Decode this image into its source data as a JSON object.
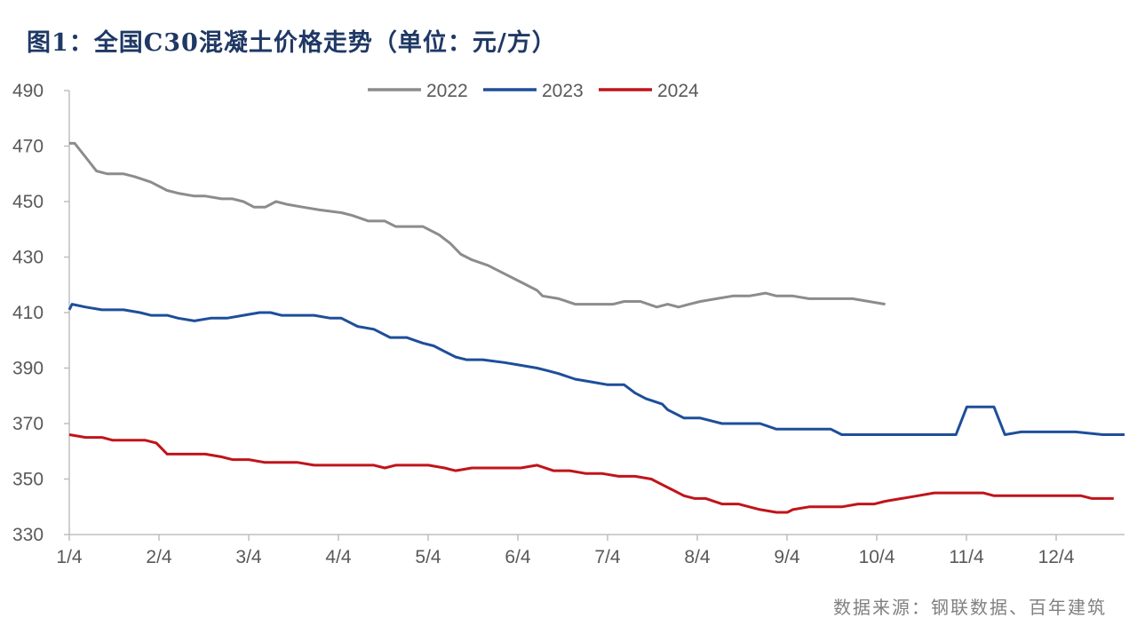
{
  "title": "图1：全国C30混凝土价格走势（单位：元/方）",
  "source": "数据来源：钢联数据、百年建筑",
  "chart_data": {
    "type": "line",
    "title": "图1：全国C30混凝土价格走势（单位：元/方）",
    "unit": "元/方",
    "ylim": [
      330,
      490
    ],
    "yticks": [
      330,
      350,
      370,
      390,
      410,
      430,
      450,
      470,
      490
    ],
    "xticks": [
      "1/4",
      "2/4",
      "3/4",
      "4/4",
      "5/4",
      "6/4",
      "7/4",
      "8/4",
      "9/4",
      "10/4",
      "11/4",
      "12/4"
    ],
    "grid": false,
    "legend": "top-center",
    "series": [
      {
        "name": "2022",
        "color": "#8c8c8c",
        "points": [
          [
            0,
            471
          ],
          [
            0.1,
            471
          ],
          [
            0.3,
            466
          ],
          [
            0.5,
            461
          ],
          [
            0.7,
            460
          ],
          [
            1.0,
            460
          ],
          [
            1.2,
            459
          ],
          [
            1.5,
            457
          ],
          [
            1.8,
            454
          ],
          [
            2.0,
            453
          ],
          [
            2.3,
            452
          ],
          [
            2.5,
            452
          ],
          [
            2.8,
            451
          ],
          [
            3.0,
            451
          ],
          [
            3.2,
            450
          ],
          [
            3.4,
            448
          ],
          [
            3.6,
            448
          ],
          [
            3.8,
            450
          ],
          [
            4.0,
            449
          ],
          [
            4.3,
            448
          ],
          [
            4.6,
            447
          ],
          [
            5.0,
            446
          ],
          [
            5.2,
            445
          ],
          [
            5.5,
            443
          ],
          [
            5.8,
            443
          ],
          [
            6.0,
            441
          ],
          [
            6.2,
            441
          ],
          [
            6.5,
            441
          ],
          [
            6.8,
            438
          ],
          [
            7.0,
            435
          ],
          [
            7.2,
            431
          ],
          [
            7.4,
            429
          ],
          [
            7.7,
            427
          ],
          [
            8.0,
            424
          ],
          [
            8.3,
            421
          ],
          [
            8.6,
            418
          ],
          [
            8.7,
            416
          ],
          [
            9.0,
            415
          ],
          [
            9.3,
            413
          ],
          [
            9.6,
            413
          ],
          [
            10.0,
            413
          ],
          [
            10.2,
            414
          ],
          [
            10.5,
            414
          ],
          [
            10.8,
            412
          ],
          [
            11.0,
            413
          ],
          [
            11.2,
            412
          ],
          [
            11.4,
            413
          ],
          [
            11.6,
            414
          ],
          [
            11.9,
            415
          ],
          [
            12.2,
            416
          ],
          [
            12.5,
            416
          ],
          [
            12.8,
            417
          ],
          [
            13.0,
            416
          ],
          [
            13.3,
            416
          ],
          [
            13.6,
            415
          ],
          [
            14.0,
            415
          ],
          [
            14.4,
            415
          ],
          [
            14.7,
            414
          ],
          [
            15.0,
            413
          ]
        ]
      },
      {
        "name": "2023",
        "color": "#1e4e9a",
        "points": [
          [
            0,
            411
          ],
          [
            0.05,
            413
          ],
          [
            0.3,
            412
          ],
          [
            0.6,
            411
          ],
          [
            1.0,
            411
          ],
          [
            1.3,
            410
          ],
          [
            1.5,
            409
          ],
          [
            1.8,
            409
          ],
          [
            2.0,
            408
          ],
          [
            2.3,
            407
          ],
          [
            2.6,
            408
          ],
          [
            2.9,
            408
          ],
          [
            3.2,
            409
          ],
          [
            3.5,
            410
          ],
          [
            3.7,
            410
          ],
          [
            3.9,
            409
          ],
          [
            4.2,
            409
          ],
          [
            4.5,
            409
          ],
          [
            4.8,
            408
          ],
          [
            5.0,
            408
          ],
          [
            5.3,
            405
          ],
          [
            5.6,
            404
          ],
          [
            5.9,
            401
          ],
          [
            6.2,
            401
          ],
          [
            6.5,
            399
          ],
          [
            6.7,
            398
          ],
          [
            6.9,
            396
          ],
          [
            7.1,
            394
          ],
          [
            7.3,
            393
          ],
          [
            7.6,
            393
          ],
          [
            8.0,
            392
          ],
          [
            8.3,
            391
          ],
          [
            8.6,
            390
          ],
          [
            8.8,
            389
          ],
          [
            9.0,
            388
          ],
          [
            9.3,
            386
          ],
          [
            9.6,
            385
          ],
          [
            9.9,
            384
          ],
          [
            10.2,
            384
          ],
          [
            10.4,
            381
          ],
          [
            10.6,
            379
          ],
          [
            10.9,
            377
          ],
          [
            11.0,
            375
          ],
          [
            11.3,
            372
          ],
          [
            11.6,
            372
          ],
          [
            12.0,
            370
          ],
          [
            12.4,
            370
          ],
          [
            12.7,
            370
          ],
          [
            13.0,
            368
          ],
          [
            13.3,
            368
          ],
          [
            13.6,
            368
          ],
          [
            14.0,
            368
          ],
          [
            14.2,
            366
          ],
          [
            14.6,
            366
          ],
          [
            15.0,
            366
          ],
          [
            15.2,
            366
          ],
          [
            15.5,
            366
          ],
          [
            16.0,
            366
          ],
          [
            16.3,
            366
          ],
          [
            16.5,
            376
          ],
          [
            16.8,
            376
          ],
          [
            17.0,
            376
          ],
          [
            17.2,
            366
          ],
          [
            17.5,
            367
          ],
          [
            18.0,
            367
          ],
          [
            18.5,
            367
          ],
          [
            19.0,
            366
          ],
          [
            19.4,
            366
          ]
        ]
      },
      {
        "name": "2024",
        "color": "#c0141a",
        "points": [
          [
            0,
            366
          ],
          [
            0.3,
            365
          ],
          [
            0.6,
            365
          ],
          [
            0.8,
            364
          ],
          [
            1.2,
            364
          ],
          [
            1.4,
            364
          ],
          [
            1.6,
            363
          ],
          [
            1.8,
            359
          ],
          [
            2.1,
            359
          ],
          [
            2.5,
            359
          ],
          [
            2.8,
            358
          ],
          [
            3.0,
            357
          ],
          [
            3.3,
            357
          ],
          [
            3.6,
            356
          ],
          [
            3.9,
            356
          ],
          [
            4.2,
            356
          ],
          [
            4.5,
            355
          ],
          [
            4.8,
            355
          ],
          [
            5.2,
            355
          ],
          [
            5.6,
            355
          ],
          [
            5.8,
            354
          ],
          [
            6.0,
            355
          ],
          [
            6.3,
            355
          ],
          [
            6.6,
            355
          ],
          [
            6.9,
            354
          ],
          [
            7.1,
            353
          ],
          [
            7.4,
            354
          ],
          [
            7.7,
            354
          ],
          [
            8.0,
            354
          ],
          [
            8.3,
            354
          ],
          [
            8.6,
            355
          ],
          [
            8.9,
            353
          ],
          [
            9.2,
            353
          ],
          [
            9.5,
            352
          ],
          [
            9.8,
            352
          ],
          [
            10.1,
            351
          ],
          [
            10.4,
            351
          ],
          [
            10.7,
            350
          ],
          [
            10.9,
            348
          ],
          [
            11.1,
            346
          ],
          [
            11.3,
            344
          ],
          [
            11.5,
            343
          ],
          [
            11.7,
            343
          ],
          [
            12.0,
            341
          ],
          [
            12.3,
            341
          ],
          [
            12.5,
            340
          ],
          [
            12.7,
            339
          ],
          [
            13.0,
            338
          ],
          [
            13.2,
            338
          ],
          [
            13.3,
            339
          ],
          [
            13.6,
            340
          ],
          [
            13.9,
            340
          ],
          [
            14.2,
            340
          ],
          [
            14.5,
            341
          ],
          [
            14.8,
            341
          ],
          [
            15.0,
            342
          ],
          [
            15.3,
            343
          ],
          [
            15.6,
            344
          ],
          [
            15.9,
            345
          ],
          [
            16.2,
            345
          ],
          [
            16.5,
            345
          ],
          [
            16.8,
            345
          ],
          [
            17.0,
            344
          ],
          [
            17.4,
            344
          ],
          [
            17.8,
            344
          ],
          [
            18.2,
            344
          ],
          [
            18.6,
            344
          ],
          [
            18.8,
            343
          ],
          [
            19.0,
            343
          ],
          [
            19.2,
            343
          ]
        ]
      }
    ]
  }
}
